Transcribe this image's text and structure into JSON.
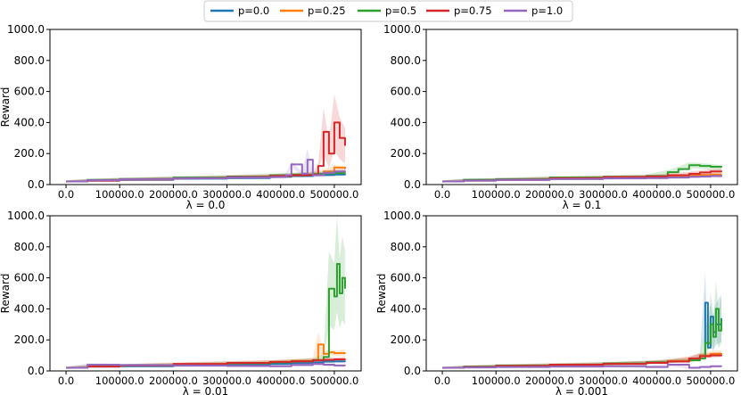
{
  "legend": [
    {
      "label": "p=0.0",
      "color": "#1f77b4"
    },
    {
      "label": "p=0.25",
      "color": "#ff7f0e"
    },
    {
      "label": "p=0.5",
      "color": "#2ca02c"
    },
    {
      "label": "p=0.75",
      "color": "#d62728"
    },
    {
      "label": "p=1.0",
      "color": "#9467bd"
    }
  ],
  "chart_data": [
    {
      "type": "line",
      "xlabel": "λ = 0.0",
      "ylabel": "Reward",
      "xticks": [
        0,
        100000,
        200000,
        300000,
        400000,
        500000
      ],
      "xtick_labels": [
        "0.0",
        "100000.0",
        "200000.0",
        "300000.0",
        "400000.0",
        "500000.0"
      ],
      "yticks": [
        0,
        200,
        400,
        600,
        800,
        1000
      ],
      "ytick_labels": [
        "0.0",
        "200.0",
        "400.0",
        "600.0",
        "800.0",
        "1000.0"
      ],
      "xlim": [
        -30000,
        550000
      ],
      "ylim": [
        0,
        1000
      ],
      "series": [
        {
          "name": "p=0.0",
          "color": "#1f77b4",
          "x": [
            0,
            40000,
            100000,
            200000,
            300000,
            380000,
            420000,
            460000,
            480000,
            500000,
            520000
          ],
          "y": [
            20,
            25,
            30,
            38,
            42,
            50,
            55,
            60,
            62,
            65,
            68
          ]
        },
        {
          "name": "p=0.25",
          "color": "#ff7f0e",
          "x": [
            0,
            40000,
            100000,
            200000,
            300000,
            380000,
            420000,
            460000,
            480000,
            500000,
            520000
          ],
          "y": [
            20,
            28,
            33,
            40,
            48,
            55,
            62,
            70,
            85,
            110,
            100
          ]
        },
        {
          "name": "p=0.5",
          "color": "#2ca02c",
          "x": [
            0,
            40000,
            100000,
            200000,
            300000,
            380000,
            420000,
            460000,
            480000,
            500000,
            520000
          ],
          "y": [
            20,
            30,
            36,
            45,
            52,
            60,
            65,
            70,
            72,
            75,
            78
          ]
        },
        {
          "name": "p=0.75",
          "color": "#d62728",
          "x": [
            0,
            40000,
            100000,
            200000,
            300000,
            380000,
            420000,
            460000,
            470000,
            480000,
            490000,
            500000,
            510000,
            520000
          ],
          "y": [
            20,
            25,
            32,
            40,
            48,
            55,
            60,
            65,
            120,
            340,
            200,
            400,
            300,
            250
          ]
        },
        {
          "name": "p=1.0",
          "color": "#9467bd",
          "x": [
            0,
            40000,
            100000,
            200000,
            300000,
            380000,
            410000,
            420000,
            440000,
            450000,
            460000,
            480000,
            500000,
            520000
          ],
          "y": [
            20,
            28,
            34,
            40,
            45,
            48,
            60,
            130,
            70,
            160,
            60,
            75,
            85,
            90
          ]
        }
      ]
    },
    {
      "type": "line",
      "xlabel": "λ = 0.1",
      "ylabel": "",
      "xticks": [
        0,
        100000,
        200000,
        300000,
        400000,
        500000
      ],
      "xtick_labels": [
        "0.0",
        "100000.0",
        "200000.0",
        "300000.0",
        "400000.0",
        "500000.0"
      ],
      "yticks": [
        0,
        200,
        400,
        600,
        800,
        1000
      ],
      "ytick_labels": [
        "0.0",
        "200.0",
        "400.0",
        "600.0",
        "800.0",
        "1000.0"
      ],
      "xlim": [
        -30000,
        550000
      ],
      "ylim": [
        0,
        1000
      ],
      "series": [
        {
          "name": "p=0.0",
          "color": "#1f77b4",
          "x": [
            0,
            40000,
            100000,
            200000,
            300000,
            380000,
            420000,
            460000,
            480000,
            500000,
            520000
          ],
          "y": [
            20,
            30,
            32,
            38,
            42,
            48,
            52,
            55,
            58,
            60,
            62
          ]
        },
        {
          "name": "p=0.25",
          "color": "#ff7f0e",
          "x": [
            0,
            40000,
            100000,
            200000,
            300000,
            380000,
            420000,
            460000,
            480000,
            500000,
            520000
          ],
          "y": [
            20,
            28,
            33,
            40,
            45,
            52,
            55,
            60,
            62,
            65,
            68
          ]
        },
        {
          "name": "p=0.5",
          "color": "#2ca02c",
          "x": [
            0,
            40000,
            100000,
            200000,
            300000,
            380000,
            420000,
            440000,
            460000,
            480000,
            500000,
            520000
          ],
          "y": [
            20,
            30,
            35,
            45,
            50,
            55,
            80,
            100,
            125,
            120,
            115,
            110
          ]
        },
        {
          "name": "p=0.75",
          "color": "#d62728",
          "x": [
            0,
            40000,
            100000,
            200000,
            300000,
            380000,
            420000,
            460000,
            480000,
            500000,
            520000
          ],
          "y": [
            20,
            25,
            30,
            40,
            48,
            52,
            60,
            70,
            78,
            85,
            90
          ]
        },
        {
          "name": "p=1.0",
          "color": "#9467bd",
          "x": [
            0,
            40000,
            100000,
            200000,
            300000,
            380000,
            420000,
            460000,
            480000,
            500000,
            520000
          ],
          "y": [
            20,
            25,
            30,
            35,
            40,
            42,
            45,
            50,
            52,
            55,
            50
          ]
        }
      ]
    },
    {
      "type": "line",
      "xlabel": "λ = 0.01",
      "ylabel": "Reward",
      "xticks": [
        0,
        100000,
        200000,
        300000,
        400000,
        500000
      ],
      "xtick_labels": [
        "0.0",
        "100000.0",
        "200000.0",
        "300000.0",
        "400000.0",
        "500000.0"
      ],
      "yticks": [
        0,
        200,
        400,
        600,
        800,
        1000
      ],
      "ytick_labels": [
        "0.0",
        "200.0",
        "400.0",
        "600.0",
        "800.0",
        "1000.0"
      ],
      "xlim": [
        -30000,
        550000
      ],
      "ylim": [
        0,
        1000
      ],
      "series": [
        {
          "name": "p=0.0",
          "color": "#1f77b4",
          "x": [
            0,
            40000,
            100000,
            200000,
            300000,
            380000,
            420000,
            460000,
            480000,
            500000,
            520000
          ],
          "y": [
            20,
            28,
            30,
            35,
            40,
            45,
            50,
            55,
            60,
            62,
            65
          ]
        },
        {
          "name": "p=0.25",
          "color": "#ff7f0e",
          "x": [
            0,
            40000,
            100000,
            200000,
            300000,
            380000,
            420000,
            460000,
            470000,
            480000,
            490000,
            500000,
            520000
          ],
          "y": [
            20,
            30,
            35,
            42,
            50,
            58,
            65,
            70,
            170,
            110,
            120,
            115,
            118
          ]
        },
        {
          "name": "p=0.5",
          "color": "#2ca02c",
          "x": [
            0,
            40000,
            100000,
            200000,
            300000,
            380000,
            420000,
            460000,
            480000,
            490000,
            500000,
            505000,
            510000,
            515000,
            520000
          ],
          "y": [
            20,
            30,
            35,
            42,
            50,
            55,
            62,
            70,
            90,
            530,
            480,
            690,
            500,
            600,
            530
          ]
        },
        {
          "name": "p=0.75",
          "color": "#d62728",
          "x": [
            0,
            40000,
            100000,
            200000,
            300000,
            380000,
            420000,
            460000,
            480000,
            500000,
            520000
          ],
          "y": [
            20,
            28,
            35,
            45,
            52,
            58,
            62,
            68,
            72,
            75,
            78
          ]
        },
        {
          "name": "p=1.0",
          "color": "#9467bd",
          "x": [
            0,
            40000,
            100000,
            200000,
            300000,
            380000,
            420000,
            460000,
            480000,
            500000,
            520000
          ],
          "y": [
            20,
            40,
            38,
            35,
            32,
            30,
            38,
            45,
            40,
            35,
            32
          ]
        }
      ]
    },
    {
      "type": "line",
      "xlabel": "λ = 0.001",
      "ylabel": "Reward",
      "xticks": [
        0,
        100000,
        200000,
        300000,
        400000,
        500000
      ],
      "xtick_labels": [
        "0.0",
        "100000.0",
        "200000.0",
        "300000.0",
        "400000.0",
        "500000.0"
      ],
      "yticks": [
        0,
        200,
        400,
        600,
        800,
        1000
      ],
      "ytick_labels": [
        "0.0",
        "200.0",
        "400.0",
        "600.0",
        "800.0",
        "1000.0"
      ],
      "xlim": [
        -30000,
        550000
      ],
      "ylim": [
        0,
        1000
      ],
      "series": [
        {
          "name": "p=0.0",
          "color": "#1f77b4",
          "x": [
            0,
            40000,
            100000,
            200000,
            300000,
            380000,
            420000,
            460000,
            480000,
            490000,
            495000,
            500000,
            505000,
            510000,
            520000
          ],
          "y": [
            20,
            25,
            30,
            35,
            45,
            55,
            62,
            70,
            100,
            440,
            150,
            350,
            250,
            300,
            340
          ]
        },
        {
          "name": "p=0.25",
          "color": "#ff7f0e",
          "x": [
            0,
            40000,
            100000,
            200000,
            300000,
            380000,
            420000,
            460000,
            480000,
            500000,
            520000
          ],
          "y": [
            20,
            25,
            30,
            38,
            45,
            55,
            65,
            80,
            100,
            110,
            115
          ]
        },
        {
          "name": "p=0.5",
          "color": "#2ca02c",
          "x": [
            0,
            40000,
            100000,
            200000,
            300000,
            380000,
            420000,
            460000,
            480000,
            490000,
            500000,
            505000,
            510000,
            515000,
            520000
          ],
          "y": [
            20,
            28,
            35,
            40,
            48,
            55,
            60,
            68,
            80,
            180,
            300,
            220,
            400,
            260,
            330
          ]
        },
        {
          "name": "p=0.75",
          "color": "#d62728",
          "x": [
            0,
            40000,
            100000,
            200000,
            300000,
            380000,
            420000,
            460000,
            480000,
            500000,
            520000
          ],
          "y": [
            20,
            25,
            32,
            40,
            45,
            52,
            60,
            80,
            95,
            100,
            105
          ]
        },
        {
          "name": "p=1.0",
          "color": "#9467bd",
          "x": [
            0,
            40000,
            100000,
            200000,
            300000,
            380000,
            420000,
            460000,
            480000,
            500000,
            520000
          ],
          "y": [
            20,
            22,
            25,
            28,
            30,
            25,
            40,
            20,
            25,
            30,
            28
          ]
        }
      ]
    }
  ]
}
